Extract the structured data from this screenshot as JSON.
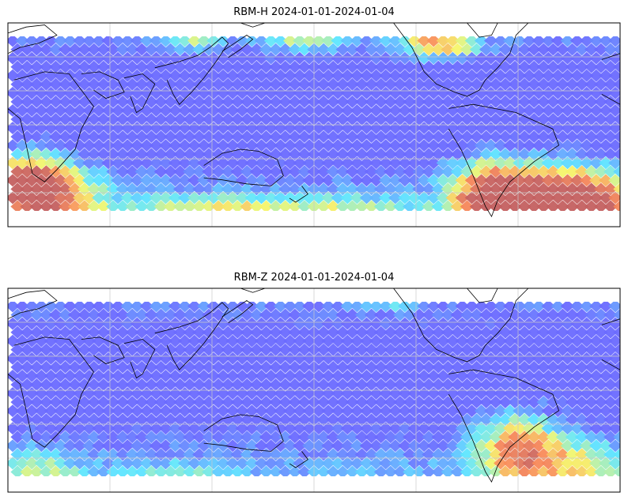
{
  "panels": [
    {
      "id": "top",
      "title": "RBM-H 2024-01-01-2024-01-04",
      "scheme": "hot"
    },
    {
      "id": "bottom",
      "title": "RBM-Z 2024-01-01-2024-01-04",
      "scheme": "mild"
    }
  ],
  "colors": {
    "low": "#6a6aff",
    "mid": "#5ee6ff",
    "warm": "#f6f66a",
    "hot": "#f98a5a",
    "peak": "#c46060",
    "coast": "#000000",
    "grid": "#c8c8c8"
  }
}
